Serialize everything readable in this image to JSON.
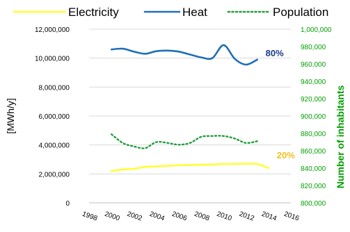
{
  "chart_data": {
    "type": "line",
    "xlabel": "",
    "ylabel_left": "[MWh/y]",
    "ylabel_right": "Number of inhabitants",
    "x_ticks": [
      1998,
      2000,
      2002,
      2004,
      2006,
      2008,
      2010,
      2012,
      2014,
      2016
    ],
    "xlim": [
      1998,
      2016
    ],
    "ylim_left": [
      0,
      12000000
    ],
    "ylim_right": [
      800000,
      1000000
    ],
    "y_ticks_left": [
      "0",
      "2,000,000",
      "4,000,000",
      "6,000,000",
      "8,000,000",
      "10,000,000",
      "12,000,000"
    ],
    "y_ticks_right": [
      "800,000",
      "820,000",
      "840,000",
      "860,000",
      "880,000",
      "900,000",
      "920,000",
      "940,000",
      "960,000",
      "980,000",
      "1,000,000"
    ],
    "grid": true,
    "legend_position": "top",
    "series": [
      {
        "name": "Electricity",
        "axis": "left",
        "color": "#ffff33",
        "style": "solid",
        "x": [
          2000,
          2001,
          2002,
          2003,
          2004,
          2005,
          2006,
          2007,
          2008,
          2009,
          2010,
          2011,
          2012,
          2013,
          2014
        ],
        "values": [
          2200000,
          2300000,
          2350000,
          2480000,
          2520000,
          2560000,
          2600000,
          2610000,
          2630000,
          2650000,
          2680000,
          2690000,
          2700000,
          2680000,
          2400000
        ]
      },
      {
        "name": "Heat",
        "axis": "left",
        "color": "#1f6fb8",
        "style": "solid",
        "x": [
          2000,
          2001,
          2002,
          2003,
          2004,
          2005,
          2006,
          2007,
          2008,
          2009,
          2010,
          2011,
          2012,
          2013
        ],
        "values": [
          10600000,
          10650000,
          10450000,
          10300000,
          10480000,
          10520000,
          10450000,
          10250000,
          10050000,
          10000000,
          10900000,
          9950000,
          9550000,
          9900000
        ]
      },
      {
        "name": "Population",
        "axis": "right",
        "color": "#1e9e3a",
        "style": "dotted",
        "x": [
          2000,
          2001,
          2002,
          2003,
          2004,
          2005,
          2006,
          2007,
          2008,
          2009,
          2010,
          2011,
          2012,
          2013
        ],
        "values": [
          879000,
          869000,
          865000,
          863000,
          870000,
          869000,
          867000,
          869000,
          876000,
          877000,
          877000,
          874000,
          869000,
          871000
        ]
      }
    ],
    "annotations": [
      {
        "text": "80%",
        "color": "#1a3a8c",
        "anchor_series": "Heat"
      },
      {
        "text": "20%",
        "color": "#f0c020",
        "anchor_series": "Electricity"
      }
    ]
  }
}
